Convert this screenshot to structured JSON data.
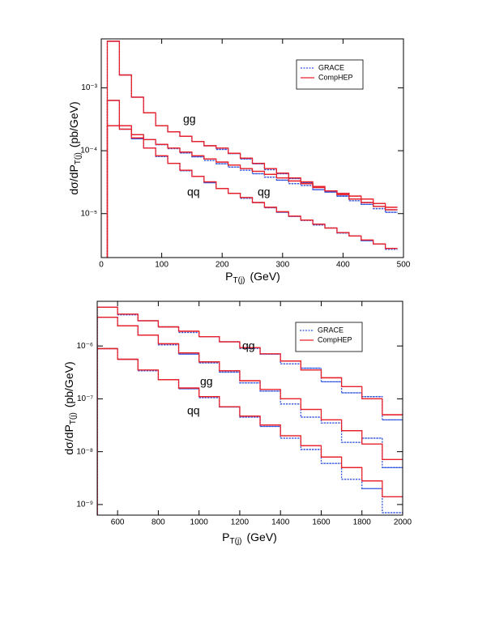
{
  "chart_data": [
    {
      "type": "step",
      "xlabel": {
        "main": "P",
        "sub": "T(j)",
        "unit": "(GeV)"
      },
      "ylabel": {
        "main": "dσ/dP",
        "sub": "T(j)",
        "unit": "(pb/GeV)"
      },
      "xlim": [
        0,
        500
      ],
      "xticks": [
        0,
        100,
        200,
        300,
        400,
        500
      ],
      "ylim": [
        2e-06,
        0.006
      ],
      "ylog": true,
      "yticks": [
        {
          "value": 1e-05,
          "label": "10⁻⁵"
        },
        {
          "value": 0.0001,
          "label": "10⁻⁴"
        },
        {
          "value": 0.001,
          "label": "10⁻³"
        }
      ],
      "legend": "upper right",
      "annotations": [
        "gg",
        "qg",
        "qq"
      ],
      "bins": [
        10,
        30,
        50,
        70,
        90,
        110,
        130,
        150,
        170,
        190,
        210,
        230,
        250,
        270,
        290,
        310,
        330,
        350,
        370,
        390,
        410,
        430,
        450,
        470,
        490
      ],
      "series": [
        {
          "name": "GRACE",
          "color": "#3355dd",
          "dashed": true,
          "values": [
            [
              0.0055,
              0.0016,
              0.00071,
              0.0004,
              0.00025,
              0.0002,
              0.00017,
              0.00014,
              0.00012,
              0.000105,
              9e-05,
              7.4e-05,
              6.2e-05,
              5e-05,
              4.3e-05,
              3.6e-05,
              3.1e-05,
              2.6e-05,
              2.2e-05,
              1.9e-05,
              1.6e-05,
              1.4e-05,
              1.2e-05,
              1.05e-05
            ],
            [
              0.00025,
              0.00022,
              0.00018,
              0.00015,
              0.000125,
              0.000108,
              9.2e-05,
              8e-05,
              7e-05,
              6.2e-05,
              5.5e-05,
              4.9e-05,
              4.3e-05,
              3.8e-05,
              3.4e-05,
              3e-05,
              2.8e-05,
              2.4e-05,
              2.2e-05,
              1.9e-05,
              1.7e-05,
              1.5e-05,
              1.3e-05,
              1.15e-05
            ],
            [
              0.00063,
              0.00025,
              0.000155,
              0.00011,
              8.1e-05,
              6.3e-05,
              4.8e-05,
              3.9e-05,
              3.1e-05,
              2.5e-05,
              2.1e-05,
              1.75e-05,
              1.5e-05,
              1.24e-05,
              1.05e-05,
              9e-06,
              7.8e-06,
              6.6e-06,
              5.9e-06,
              4.9e-06,
              4.4e-06,
              3.7e-06,
              3.3e-06,
              2.7e-06
            ]
          ]
        },
        {
          "name": "CompHEP",
          "color": "#e8202a",
          "dashed": false,
          "values": [
            [
              0.0055,
              0.0016,
              0.00071,
              0.0004,
              0.00025,
              0.0002,
              0.00017,
              0.00014,
              0.00012,
              0.00011,
              9.1e-05,
              7.6e-05,
              6.3e-05,
              5.2e-05,
              4.4e-05,
              3.7e-05,
              3.2e-05,
              2.7e-05,
              2.3e-05,
              2e-05,
              1.7e-05,
              1.5e-05,
              1.3e-05,
              1.15e-05
            ],
            [
              0.00025,
              0.00022,
              0.00018,
              0.00015,
              0.000126,
              0.00011,
              9.5e-05,
              8.3e-05,
              7.4e-05,
              6.6e-05,
              5.9e-05,
              5.2e-05,
              4.7e-05,
              4.2e-05,
              3.7e-05,
              3.3e-05,
              3e-05,
              2.6e-05,
              2.3e-05,
              2.1e-05,
              1.9e-05,
              1.7e-05,
              1.45e-05,
              1.26e-05
            ],
            [
              0.00063,
              0.00025,
              0.00016,
              0.00011,
              8.3e-05,
              6.3e-05,
              4.9e-05,
              3.9e-05,
              3.2e-05,
              2.5e-05,
              2.1e-05,
              1.8e-05,
              1.5e-05,
              1.26e-05,
              1.07e-05,
              9.1e-06,
              7.9e-06,
              6.8e-06,
              5.9e-06,
              5e-06,
              4.4e-06,
              3.8e-06,
              3.3e-06,
              2.8e-06
            ]
          ]
        }
      ]
    },
    {
      "type": "step",
      "xlabel": {
        "main": "P",
        "sub": "T(j)",
        "unit": "(GeV)"
      },
      "ylabel": {
        "main": "dσ/dP",
        "sub": "T(j)",
        "unit": "(pb/GeV)"
      },
      "xlim": [
        500,
        2000
      ],
      "xticks": [
        600,
        800,
        1000,
        1200,
        1400,
        1600,
        1800,
        2000
      ],
      "ylim": [
        6.3e-10,
        7e-06
      ],
      "ylog": true,
      "yticks": [
        {
          "value": 1e-09,
          "label": "10⁻⁹"
        },
        {
          "value": 1e-08,
          "label": "10⁻⁸"
        },
        {
          "value": 1e-07,
          "label": "10⁻⁷"
        },
        {
          "value": 1e-06,
          "label": "10⁻⁶"
        }
      ],
      "legend": "upper right",
      "annotations": [
        "qg",
        "gg",
        "qq"
      ],
      "bins": [
        500,
        600,
        700,
        800,
        900,
        1000,
        1100,
        1200,
        1300,
        1400,
        1500,
        1600,
        1700,
        1800,
        1900,
        2000
      ],
      "series": [
        {
          "name": "GRACE",
          "color": "#3355dd",
          "dashed": true,
          "values": [
            [
              5.4e-06,
              3.9e-06,
              3e-06,
              2.3e-06,
              1.8e-06,
              1.5e-06,
              1.2e-06,
              9e-07,
              7e-07,
              4.6e-07,
              3.8e-07,
              2.1e-07,
              1.3e-07,
              1.1e-07,
              4e-08
            ],
            [
              3.5e-06,
              2.4e-06,
              1.6e-06,
              1.05e-06,
              7e-07,
              4.8e-07,
              3.2e-07,
              2e-07,
              1.4e-07,
              8e-08,
              4.5e-08,
              3.5e-08,
              1.5e-08,
              1.8e-08,
              5e-09
            ],
            [
              8.9e-07,
              5.6e-07,
              3.4e-07,
              2.3e-07,
              1.55e-07,
              1.05e-07,
              7e-08,
              4.5e-08,
              3e-08,
              1.8e-08,
              1.1e-08,
              6e-09,
              3e-09,
              2e-09,
              7e-10
            ]
          ]
        },
        {
          "name": "CompHEP",
          "color": "#e8202a",
          "dashed": false,
          "values": [
            [
              5.4e-06,
              4e-06,
              3e-06,
              2.3e-06,
              1.9e-06,
              1.5e-06,
              1.2e-06,
              9.3e-07,
              7.1e-07,
              5.2e-07,
              3.5e-07,
              2.5e-07,
              1.7e-07,
              1e-07,
              5e-08
            ],
            [
              3.5e-06,
              2.4e-06,
              1.6e-06,
              1.1e-06,
              7.4e-07,
              5e-07,
              3.4e-07,
              2.2e-07,
              1.5e-07,
              1e-07,
              6.3e-08,
              4e-08,
              2.5e-08,
              1.4e-08,
              7.1e-09
            ],
            [
              8.9e-07,
              5.6e-07,
              3.5e-07,
              2.3e-07,
              1.6e-07,
              1.1e-07,
              7.1e-08,
              4.7e-08,
              3.2e-08,
              2e-08,
              1.3e-08,
              7.9e-09,
              5e-09,
              2.8e-09,
              1.4e-09
            ]
          ]
        }
      ]
    }
  ]
}
